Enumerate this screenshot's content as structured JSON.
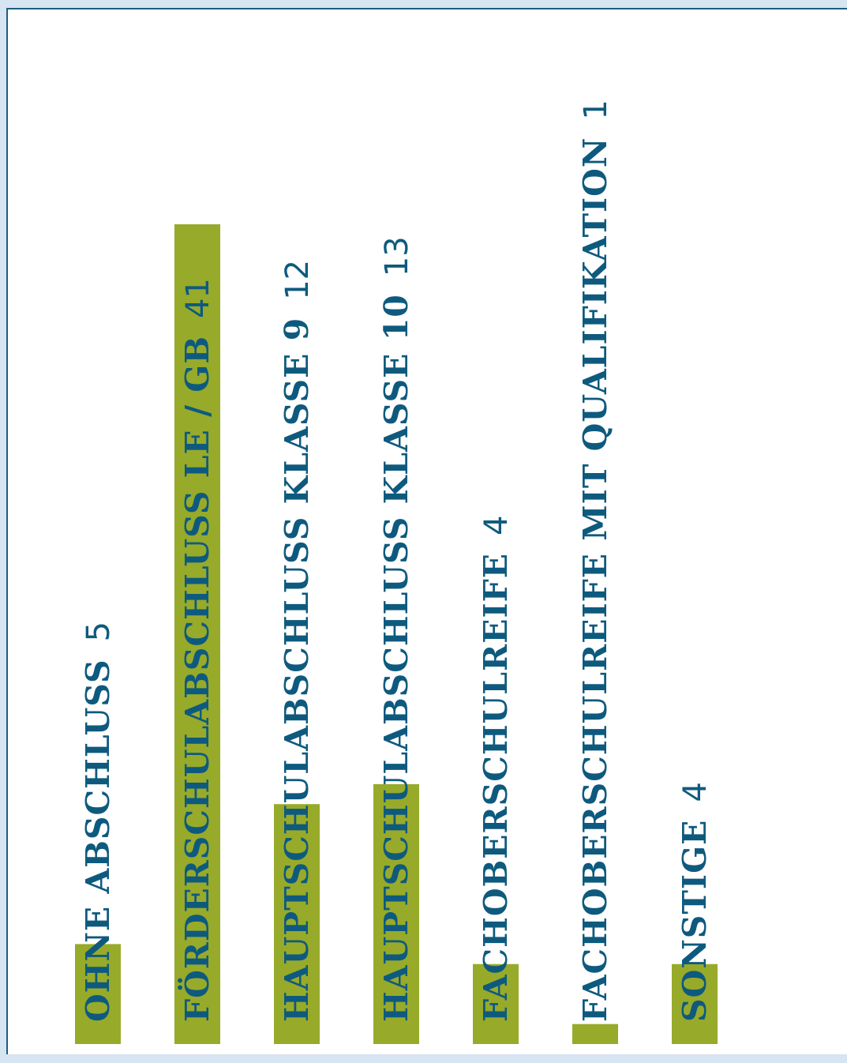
{
  "chart_data": {
    "type": "bar",
    "orientation": "vertical",
    "categories": [
      "OHNE ABSCHLUSS",
      "FÖRDERSCHULABSCHLUSS LE / GB",
      "HAUPTSCHULABSCHLUSS KLASSE 9",
      "HAUPTSCHULABSCHLUSS KLASSE 10",
      "FACHOBERSCHULREIFE",
      "FACHOBERSCHULREIFE MIT QUALIFIKATION",
      "SONSTIGE"
    ],
    "values": [
      5,
      41,
      12,
      13,
      4,
      1,
      4
    ],
    "value_labels": [
      "5",
      "41",
      "12",
      "13",
      "4",
      "1",
      "4"
    ],
    "ylim": [
      0,
      41
    ],
    "grid": false,
    "legend": "none",
    "colors": {
      "bar": "#97aa2a",
      "label": "#0e5a7e",
      "frame": "#1b5e80",
      "background": "#d7e4f2"
    }
  }
}
